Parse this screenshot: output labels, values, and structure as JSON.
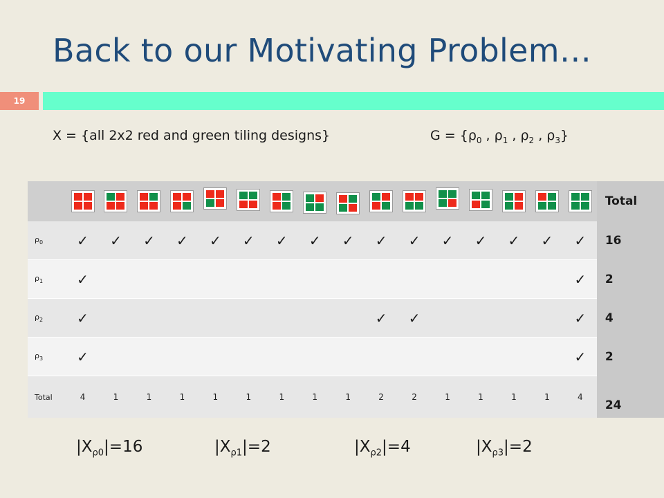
{
  "slide": {
    "title": "Back to our Motivating Problem…",
    "number": "19",
    "accent_color": "#66ffcc",
    "number_badge_color": "#f08f7a"
  },
  "formulas": {
    "x_set": "X = {all 2x2 red and green tiling designs}",
    "g_prefix": "G = {",
    "g_symbols": [
      {
        "base": "ρ",
        "sub": "0",
        "after": " , "
      },
      {
        "base": "ρ",
        "sub": "1",
        "after": " , "
      },
      {
        "base": "ρ",
        "sub": "2",
        "after": " , "
      },
      {
        "base": "ρ",
        "sub": "3",
        "after": ""
      }
    ],
    "g_suffix": "}"
  },
  "table": {
    "total_header": "Total",
    "tiles": [
      [
        "R",
        "R",
        "R",
        "R"
      ],
      [
        "G",
        "R",
        "R",
        "R"
      ],
      [
        "R",
        "G",
        "R",
        "R"
      ],
      [
        "R",
        "R",
        "R",
        "G"
      ],
      [
        "R",
        "R",
        "G",
        "R"
      ],
      [
        "G",
        "G",
        "R",
        "R"
      ],
      [
        "R",
        "G",
        "R",
        "G"
      ],
      [
        "G",
        "R",
        "G",
        "G"
      ],
      [
        "R",
        "G",
        "G",
        "R"
      ],
      [
        "G",
        "R",
        "R",
        "G"
      ],
      [
        "R",
        "R",
        "G",
        "G"
      ],
      [
        "G",
        "G",
        "G",
        "R"
      ],
      [
        "G",
        "G",
        "R",
        "G"
      ],
      [
        "G",
        "R",
        "G",
        "R"
      ],
      [
        "R",
        "G",
        "G",
        "G"
      ],
      [
        "G",
        "G",
        "G",
        "G"
      ]
    ],
    "rows": [
      {
        "label_base": "ρ",
        "label_sub": "0",
        "marks": [
          "✓",
          "✓",
          "✓",
          "✓",
          "✓",
          "✓",
          "✓",
          "✓",
          "✓",
          "✓",
          "✓",
          "✓",
          "✓",
          "✓",
          "✓",
          "✓"
        ],
        "total": "16"
      },
      {
        "label_base": "ρ",
        "label_sub": "1",
        "marks": [
          "✓",
          "",
          "",
          "",
          "",
          "",
          "",
          "",
          "",
          "",
          "",
          "",
          "",
          "",
          "",
          "✓"
        ],
        "total": "2"
      },
      {
        "label_base": "ρ",
        "label_sub": "2",
        "marks": [
          "✓",
          "",
          "",
          "",
          "",
          "",
          "",
          "",
          "",
          "✓",
          "✓",
          "",
          "",
          "",
          "",
          "✓"
        ],
        "total": "4"
      },
      {
        "label_base": "ρ",
        "label_sub": "3",
        "marks": [
          "✓",
          "",
          "",
          "",
          "",
          "",
          "",
          "",
          "",
          "",
          "",
          "",
          "",
          "",
          "",
          "✓"
        ],
        "total": "2"
      }
    ],
    "total_row": {
      "label": "Total",
      "values": [
        "4",
        "1",
        "1",
        "1",
        "1",
        "1",
        "1",
        "1",
        "1",
        "2",
        "2",
        "1",
        "1",
        "1",
        "1",
        "4"
      ],
      "grand_total": "24"
    }
  },
  "fixed_counts": [
    {
      "prefix": "|X",
      "sub": "ρ0",
      "suffix": "|=16"
    },
    {
      "prefix": "|X",
      "sub": "ρ1",
      "suffix": "|=2"
    },
    {
      "prefix": "|X",
      "sub": "ρ2",
      "suffix": "|=4"
    },
    {
      "prefix": "|X",
      "sub": "ρ3",
      "suffix": "|=2"
    }
  ]
}
